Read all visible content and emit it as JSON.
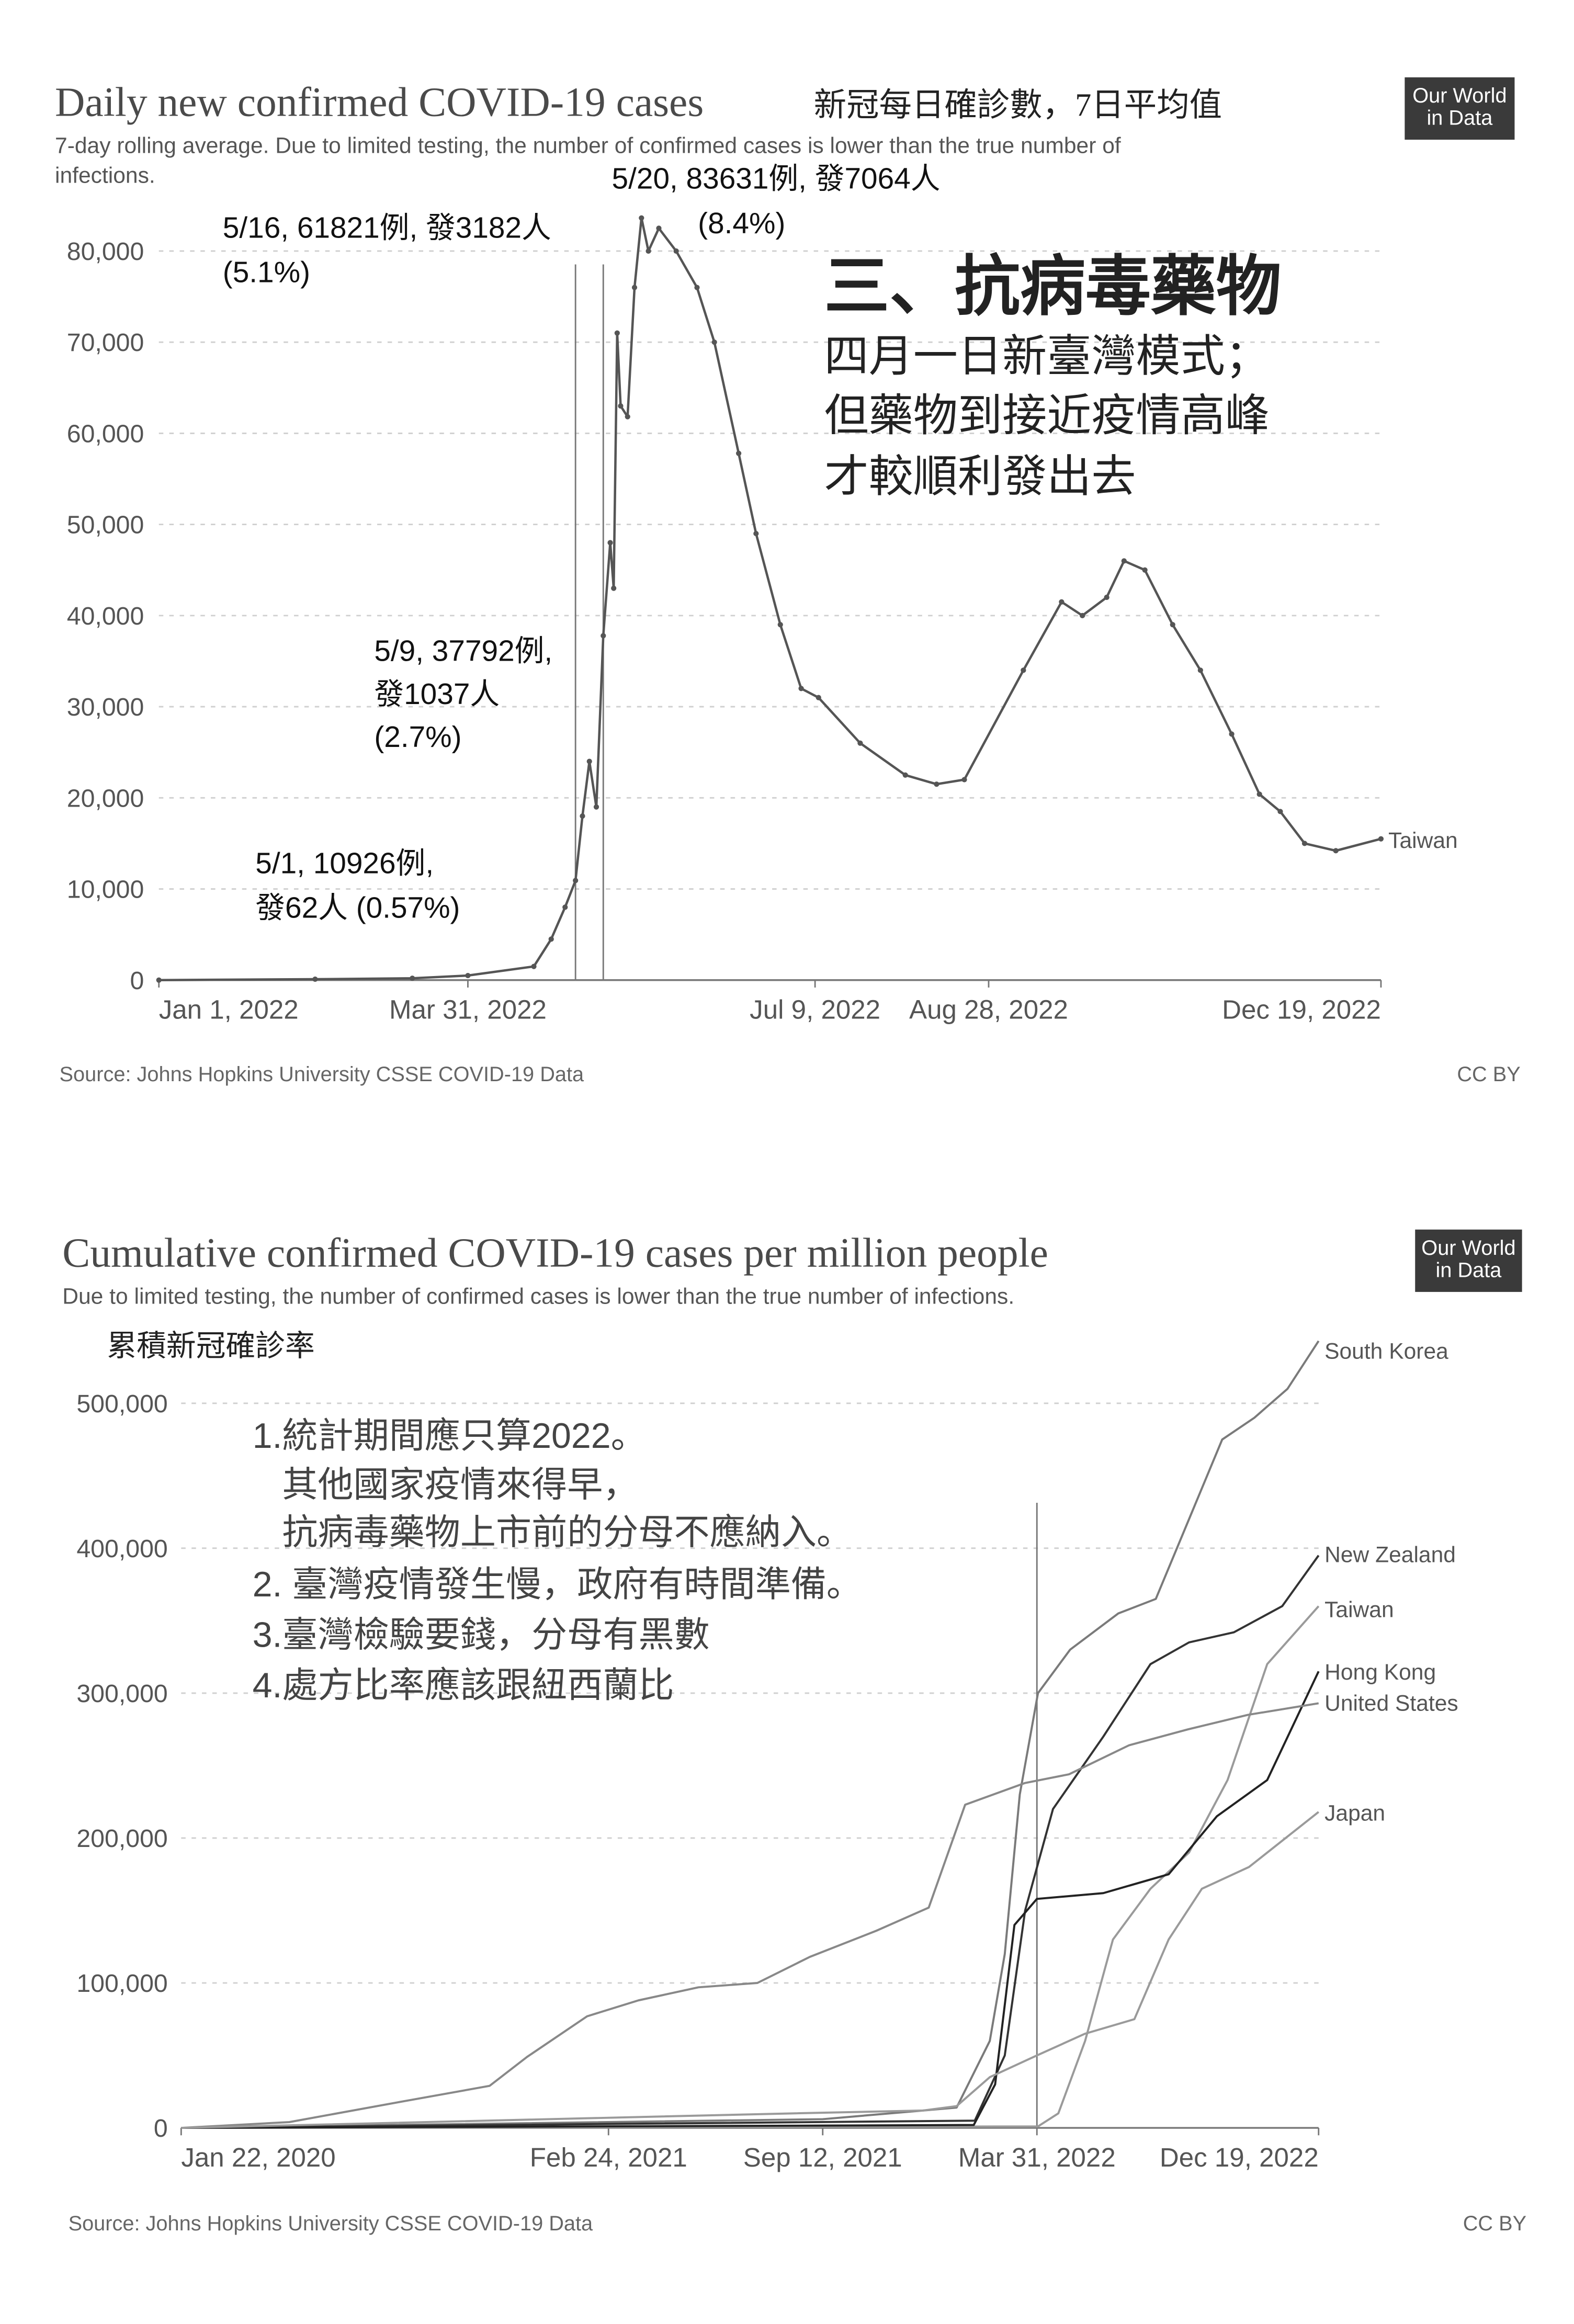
{
  "chart_data": [
    {
      "type": "line",
      "title": "Daily new confirmed COVID-19 cases",
      "title_note": "新冠每日確診數，7日平均值",
      "subtitle": [
        "7-day rolling average. Due to limited testing, the number of confirmed cases is lower than the true number of",
        "infections."
      ],
      "logo": [
        "Our World",
        "in Data"
      ],
      "source": "Source: Johns Hopkins University CSSE COVID-19 Data",
      "license": "CC BY",
      "xlim": [
        "2022-01-01",
        "2022-12-19"
      ],
      "xticks": [
        {
          "value": "2022-01-01",
          "label": "Jan 1, 2022"
        },
        {
          "value": "2022-03-31",
          "label": "Mar 31, 2022"
        },
        {
          "value": "2022-07-09",
          "label": "Jul 9, 2022"
        },
        {
          "value": "2022-08-28",
          "label": "Aug 28, 2022"
        },
        {
          "value": "2022-12-19",
          "label": "Dec 19, 2022"
        }
      ],
      "ylim": [
        0,
        80000
      ],
      "yticks": [
        0,
        {
          "value": 10000,
          "label": "10,000"
        },
        {
          "value": 20000,
          "label": "20,000"
        },
        {
          "value": 30000,
          "label": "30,000"
        },
        {
          "value": 40000,
          "label": "40,000"
        },
        {
          "value": 50000,
          "label": "50,000"
        },
        {
          "value": 60000,
          "label": "60,000"
        },
        {
          "value": 70000,
          "label": "70,000"
        },
        {
          "value": 80000,
          "label": "80,000"
        }
      ],
      "grid": true,
      "vlines": [
        "2022-05-01",
        "2022-05-09"
      ],
      "series": [
        {
          "name": "Taiwan",
          "color": "#555555",
          "x": [
            "2022-01-01",
            "2022-02-15",
            "2022-03-15",
            "2022-03-31",
            "2022-04-19",
            "2022-04-24",
            "2022-04-28",
            "2022-05-01",
            "2022-05-03",
            "2022-05-05",
            "2022-05-07",
            "2022-05-09",
            "2022-05-11",
            "2022-05-12",
            "2022-05-13",
            "2022-05-14",
            "2022-05-16",
            "2022-05-18",
            "2022-05-20",
            "2022-05-22",
            "2022-05-25",
            "2022-05-30",
            "2022-06-05",
            "2022-06-10",
            "2022-06-17",
            "2022-06-22",
            "2022-06-29",
            "2022-07-05",
            "2022-07-10",
            "2022-07-22",
            "2022-08-04",
            "2022-08-13",
            "2022-08-21",
            "2022-09-07",
            "2022-09-18",
            "2022-09-24",
            "2022-10-01",
            "2022-10-06",
            "2022-10-12",
            "2022-10-20",
            "2022-10-28",
            "2022-11-06",
            "2022-11-14",
            "2022-11-20",
            "2022-11-27",
            "2022-12-06",
            "2022-12-19"
          ],
          "values": [
            0,
            100,
            200,
            500,
            1500,
            4500,
            8000,
            10926,
            18000,
            24000,
            19000,
            37792,
            48000,
            43000,
            71000,
            63000,
            61821,
            76000,
            83631,
            80000,
            82500,
            80000,
            76000,
            70000,
            57800,
            49000,
            39000,
            32000,
            31000,
            26000,
            22500,
            21500,
            22000,
            34000,
            41500,
            40000,
            42000,
            46000,
            45000,
            39000,
            34000,
            27000,
            20400,
            18500,
            15000,
            14200,
            15500
          ]
        }
      ],
      "annotations": [
        {
          "lines": [
            "5/16, 61821例, 發3182人",
            "(5.1%)"
          ]
        },
        {
          "lines": [
            "5/20, 83631例, 發7064人",
            "(8.4%)"
          ]
        },
        {
          "lines": [
            "5/9, 37792例,",
            "發1037人",
            "(2.7%)"
          ]
        },
        {
          "lines": [
            "5/1, 10926例,",
            "發62人 (0.57%)"
          ]
        },
        {
          "lines": [
            "三、抗病毒藥物",
            "四月一日新臺灣模式；",
            "但藥物到接近疫情高峰",
            "才較順利發出去"
          ]
        }
      ]
    },
    {
      "type": "line",
      "title": "Cumulative confirmed COVID-19 cases per million people",
      "subtitle": [
        "Due to limited testing, the number of confirmed cases is lower than the true number of infections."
      ],
      "logo": [
        "Our World",
        "in Data"
      ],
      "source": "Source: Johns Hopkins University CSSE COVID-19 Data",
      "license": "CC BY",
      "xlim": [
        "2020-01-22",
        "2022-12-19"
      ],
      "xticks": [
        {
          "value": "2020-01-22",
          "label": "Jan 22, 2020"
        },
        {
          "value": "2021-02-24",
          "label": "Feb 24, 2021"
        },
        {
          "value": "2021-09-12",
          "label": "Sep 12, 2021"
        },
        {
          "value": "2022-03-31",
          "label": "Mar 31, 2022"
        },
        {
          "value": "2022-12-19",
          "label": "Dec 19, 2022"
        }
      ],
      "ylim": [
        0,
        500000
      ],
      "yticks": [
        0,
        {
          "value": 100000,
          "label": "100,000"
        },
        {
          "value": 200000,
          "label": "200,000"
        },
        {
          "value": 300000,
          "label": "300,000"
        },
        {
          "value": 400000,
          "label": "400,000"
        },
        {
          "value": 500000,
          "label": "500,000"
        }
      ],
      "grid": true,
      "vlines": [
        "2022-03-31"
      ],
      "series": [
        {
          "name": "South Korea",
          "color": "#7a7a7a",
          "x": [
            "2020-01-22",
            "2021-09-12",
            "2022-01-15",
            "2022-02-15",
            "2022-03-01",
            "2022-03-15",
            "2022-04-01",
            "2022-05-01",
            "2022-06-15",
            "2022-07-20",
            "2022-08-20",
            "2022-09-20",
            "2022-10-20",
            "2022-11-20",
            "2022-12-19"
          ],
          "values": [
            0,
            6000,
            14000,
            60000,
            120000,
            230000,
            300000,
            330000,
            355000,
            365000,
            420000,
            475000,
            490000,
            510000,
            543000
          ]
        },
        {
          "name": "New Zealand",
          "color": "#333333",
          "x": [
            "2020-01-22",
            "2022-02-01",
            "2022-03-01",
            "2022-03-20",
            "2022-04-15",
            "2022-06-01",
            "2022-07-15",
            "2022-08-20",
            "2022-10-01",
            "2022-11-15",
            "2022-12-19"
          ],
          "values": [
            0,
            5000,
            50000,
            150000,
            220000,
            270000,
            320000,
            335000,
            342000,
            360000,
            395000
          ]
        },
        {
          "name": "Taiwan",
          "color": "#9a9a9a",
          "x": [
            "2020-01-22",
            "2022-04-01",
            "2022-04-20",
            "2022-05-15",
            "2022-06-10",
            "2022-07-15",
            "2022-08-20",
            "2022-09-25",
            "2022-11-01",
            "2022-12-19"
          ],
          "values": [
            0,
            1000,
            10000,
            60000,
            130000,
            165000,
            190000,
            240000,
            320000,
            360000
          ]
        },
        {
          "name": "Hong Kong",
          "color": "#222222",
          "x": [
            "2020-01-22",
            "2021-09-12",
            "2022-01-31",
            "2022-02-20",
            "2022-03-10",
            "2022-03-31",
            "2022-06-01",
            "2022-08-01",
            "2022-09-15",
            "2022-11-01",
            "2022-12-19"
          ],
          "values": [
            0,
            1600,
            2000,
            30000,
            140000,
            158000,
            162000,
            175000,
            215000,
            240000,
            315000
          ]
        },
        {
          "name": "United States",
          "color": "#888888",
          "x": [
            "2020-01-22",
            "2020-05-02",
            "2020-08-14",
            "2020-11-05",
            "2020-12-10",
            "2021-02-04",
            "2021-03-24",
            "2021-05-19",
            "2021-07-13",
            "2021-08-31",
            "2021-11-01",
            "2021-12-20",
            "2022-01-23",
            "2022-03-20",
            "2022-04-30",
            "2022-06-25",
            "2022-08-19",
            "2022-10-14",
            "2022-12-19"
          ],
          "values": [
            0,
            4000,
            18000,
            29000,
            49000,
            77000,
            88000,
            97000,
            100000,
            118000,
            136000,
            152000,
            223000,
            238000,
            244000,
            264000,
            275000,
            285000,
            293000
          ]
        },
        {
          "name": "Japan",
          "color": "#9a9a9a",
          "x": [
            "2020-01-22",
            "2021-08-15",
            "2021-12-15",
            "2022-01-15",
            "2022-02-15",
            "2022-03-31",
            "2022-05-15",
            "2022-06-30",
            "2022-08-01",
            "2022-09-01",
            "2022-10-15",
            "2022-12-19"
          ],
          "values": [
            0,
            10000,
            12000,
            15000,
            35000,
            50000,
            65000,
            75000,
            130000,
            165000,
            180000,
            218000
          ]
        }
      ],
      "annotations": [
        {
          "lines": [
            "累積新冠確診率"
          ]
        },
        {
          "lines": [
            "1.統計期間應只算2022。",
            "其他國家疫情來得早，",
            "抗病毒藥物上市前的分母不應納入。",
            "2. 臺灣疫情發生慢，政府有時間準備。",
            "3.臺灣檢驗要錢，分母有黑數",
            "4.處方比率應該跟紐西蘭比"
          ]
        }
      ]
    }
  ]
}
